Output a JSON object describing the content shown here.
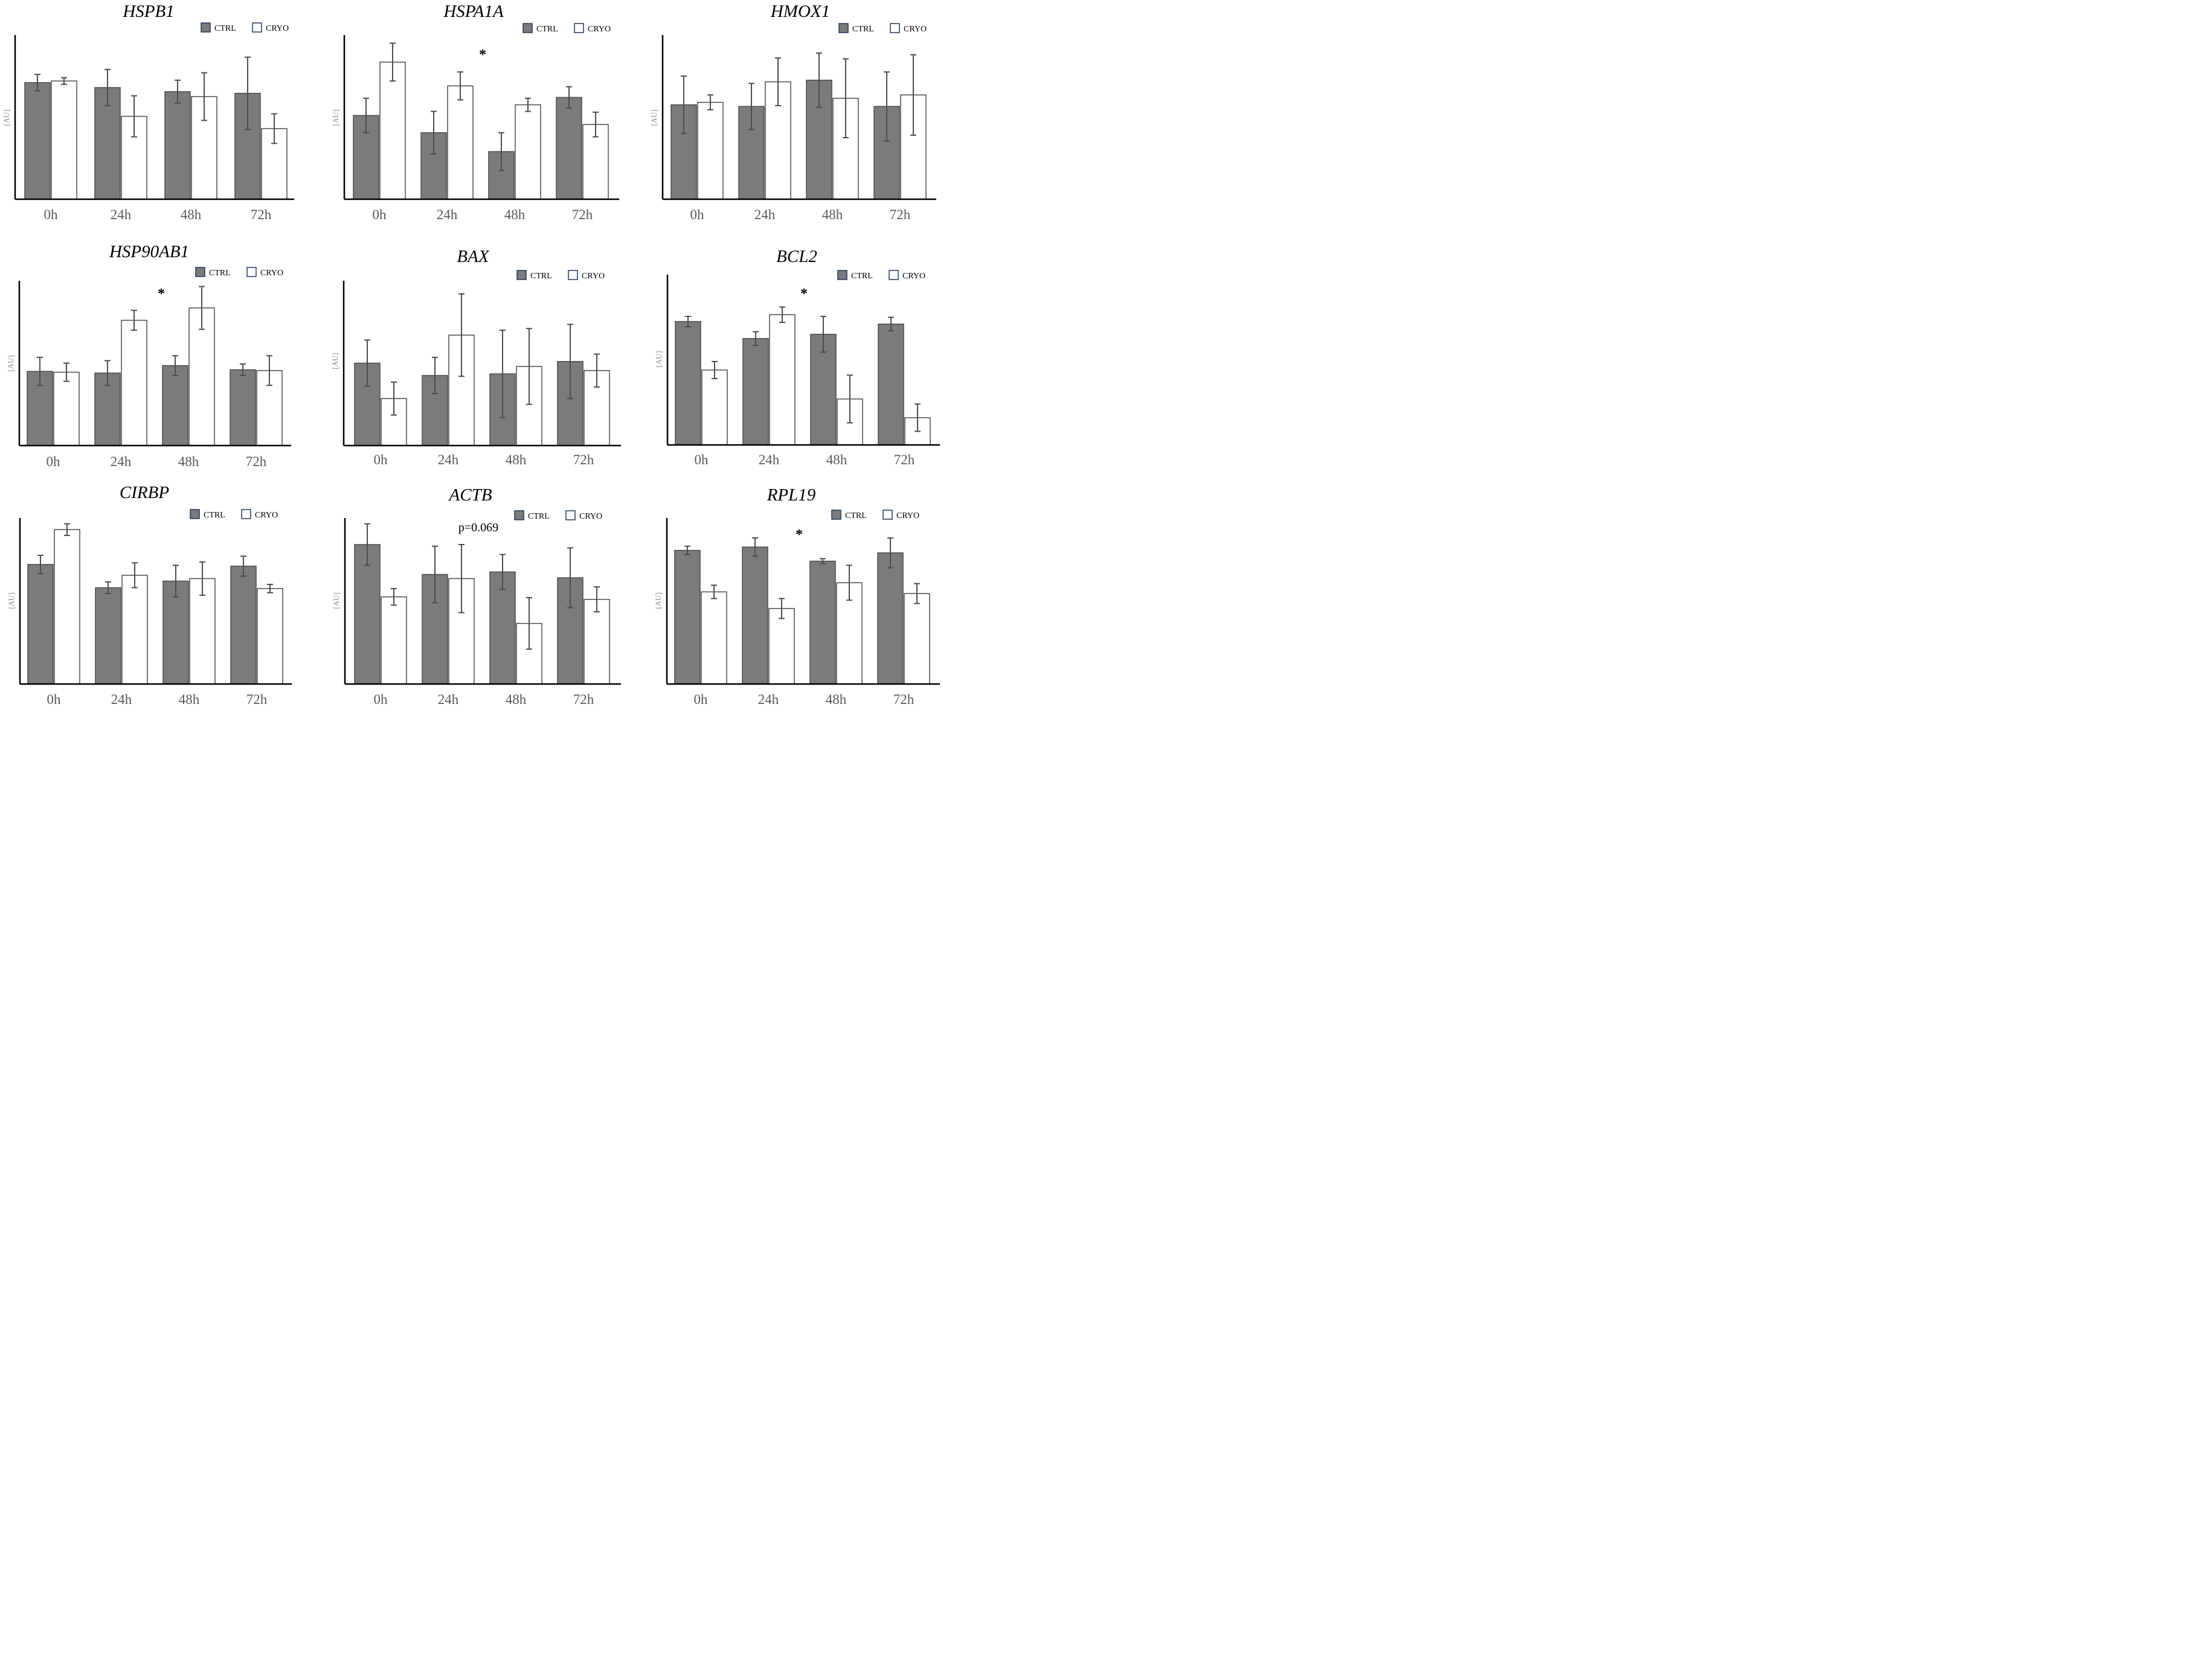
{
  "colors": {
    "ctrl": "#7b7b7b",
    "cryo": "#ffffff",
    "bar_stroke": "#4d4d4d",
    "axis": "#000000",
    "errbar": "#4d4d4d",
    "legend_stroke": "#1f3a5f"
  },
  "chart_data": [
    {
      "type": "bar",
      "title": "HSPB1",
      "ylabel": "[AU]",
      "ylim": [
        0,
        1
      ],
      "categories": [
        "0h",
        "24h",
        "48h",
        "72h"
      ],
      "series": [
        {
          "name": "CTRL",
          "values": [
            0.71,
            0.68,
            0.655,
            0.645
          ],
          "errors": [
            0.05,
            0.11,
            0.07,
            0.22
          ]
        },
        {
          "name": "CRYO",
          "values": [
            0.72,
            0.505,
            0.625,
            0.43
          ],
          "errors": [
            0.02,
            0.125,
            0.145,
            0.09
          ]
        }
      ],
      "annotation": ""
    },
    {
      "type": "bar",
      "title": "HSPA1A",
      "ylabel": "[AU]",
      "ylim": [
        0,
        1
      ],
      "categories": [
        "0h",
        "24h",
        "48h",
        "72h"
      ],
      "series": [
        {
          "name": "CTRL",
          "values": [
            0.51,
            0.405,
            0.29,
            0.62
          ],
          "errors": [
            0.105,
            0.13,
            0.115,
            0.065
          ]
        },
        {
          "name": "CRYO",
          "values": [
            0.835,
            0.69,
            0.575,
            0.455
          ],
          "errors": [
            0.115,
            0.085,
            0.04,
            0.075
          ]
        }
      ],
      "annotation": "*"
    },
    {
      "type": "bar",
      "title": "HMOX1",
      "ylabel": "[AU]",
      "ylim": [
        0,
        1
      ],
      "categories": [
        "0h",
        "24h",
        "48h",
        "72h"
      ],
      "series": [
        {
          "name": "CTRL",
          "values": [
            0.575,
            0.565,
            0.725,
            0.565
          ],
          "errors": [
            0.175,
            0.14,
            0.165,
            0.21
          ]
        },
        {
          "name": "CRYO",
          "values": [
            0.59,
            0.715,
            0.615,
            0.635
          ],
          "errors": [
            0.045,
            0.145,
            0.24,
            0.245
          ]
        }
      ],
      "annotation": ""
    },
    {
      "type": "bar",
      "title": "HSP90AB1",
      "ylabel": "[AU]",
      "ylim": [
        0,
        1
      ],
      "categories": [
        "0h",
        "24h",
        "48h",
        "72h"
      ],
      "series": [
        {
          "name": "CTRL",
          "values": [
            0.45,
            0.44,
            0.485,
            0.46
          ],
          "errors": [
            0.085,
            0.075,
            0.06,
            0.035
          ]
        },
        {
          "name": "CRYO",
          "values": [
            0.445,
            0.76,
            0.835,
            0.455
          ],
          "errors": [
            0.055,
            0.06,
            0.13,
            0.09
          ]
        }
      ],
      "annotation": "*"
    },
    {
      "type": "bar",
      "title": "BAX",
      "ylabel": "[AU]",
      "ylim": [
        0,
        1
      ],
      "categories": [
        "0h",
        "24h",
        "48h",
        "72h"
      ],
      "series": [
        {
          "name": "CTRL",
          "values": [
            0.5,
            0.425,
            0.435,
            0.51
          ],
          "errors": [
            0.14,
            0.11,
            0.265,
            0.225
          ]
        },
        {
          "name": "CRYO",
          "values": [
            0.285,
            0.67,
            0.48,
            0.455
          ],
          "errors": [
            0.1,
            0.25,
            0.23,
            0.1
          ]
        }
      ],
      "annotation": ""
    },
    {
      "type": "bar",
      "title": "BCL2",
      "ylabel": "[AU]",
      "ylim": [
        0,
        1
      ],
      "categories": [
        "0h",
        "24h",
        "48h",
        "72h"
      ],
      "series": [
        {
          "name": "CTRL",
          "values": [
            0.725,
            0.625,
            0.65,
            0.71
          ],
          "errors": [
            0.03,
            0.04,
            0.105,
            0.04
          ]
        },
        {
          "name": "CRYO",
          "values": [
            0.44,
            0.765,
            0.27,
            0.16
          ],
          "errors": [
            0.05,
            0.045,
            0.14,
            0.08
          ]
        }
      ],
      "annotation": "*"
    },
    {
      "type": "bar",
      "title": "CIRBP",
      "ylabel": "[AU]",
      "ylim": [
        0,
        1
      ],
      "categories": [
        "0h",
        "24h",
        "48h",
        "72h"
      ],
      "series": [
        {
          "name": "CTRL",
          "values": [
            0.72,
            0.58,
            0.62,
            0.71
          ],
          "errors": [
            0.055,
            0.035,
            0.095,
            0.06
          ]
        },
        {
          "name": "CRYO",
          "values": [
            0.93,
            0.655,
            0.635,
            0.575
          ],
          "errors": [
            0.035,
            0.075,
            0.1,
            0.025
          ]
        }
      ],
      "annotation": ""
    },
    {
      "type": "bar",
      "title": "ACTB",
      "ylabel": "[AU]",
      "ylim": [
        0,
        1
      ],
      "categories": [
        "0h",
        "24h",
        "48h",
        "72h"
      ],
      "series": [
        {
          "name": "CTRL",
          "values": [
            0.84,
            0.66,
            0.675,
            0.64
          ],
          "errors": [
            0.125,
            0.17,
            0.105,
            0.18
          ]
        },
        {
          "name": "CRYO",
          "values": [
            0.525,
            0.635,
            0.365,
            0.51
          ],
          "errors": [
            0.05,
            0.205,
            0.155,
            0.075
          ]
        }
      ],
      "annotation": "p=0.069"
    },
    {
      "type": "bar",
      "title": "RPL19",
      "ylabel": "[AU]",
      "ylim": [
        0,
        1
      ],
      "categories": [
        "0h",
        "24h",
        "48h",
        "72h"
      ],
      "series": [
        {
          "name": "CTRL",
          "values": [
            0.805,
            0.825,
            0.74,
            0.79
          ],
          "errors": [
            0.025,
            0.055,
            0.015,
            0.09
          ]
        },
        {
          "name": "CRYO",
          "values": [
            0.555,
            0.455,
            0.61,
            0.545
          ],
          "errors": [
            0.04,
            0.06,
            0.105,
            0.06
          ]
        }
      ],
      "annotation": "*"
    }
  ]
}
